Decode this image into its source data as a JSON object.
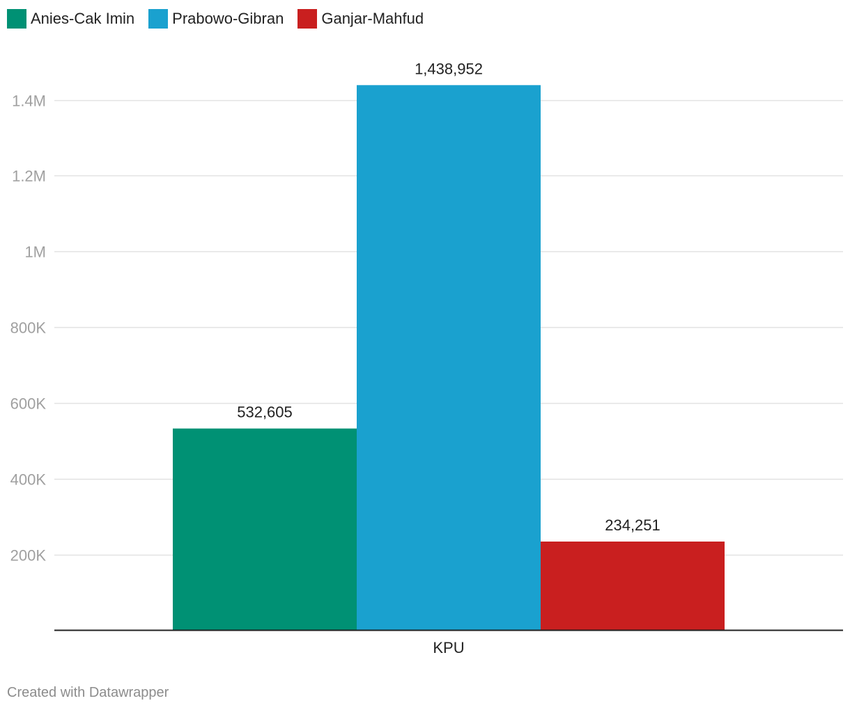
{
  "chart_data": {
    "type": "bar",
    "categories": [
      "KPU"
    ],
    "series": [
      {
        "name": "Anies-Cak Imin",
        "values": [
          532605
        ],
        "value_label": "532,605",
        "color": "#009174"
      },
      {
        "name": "Prabowo-Gibran",
        "values": [
          1438952
        ],
        "value_label": "1,438,952",
        "color": "#1aa1cf"
      },
      {
        "name": "Ganjar-Mahfud",
        "values": [
          234251
        ],
        "value_label": "234,251",
        "color": "#c91f1f"
      }
    ],
    "ylim": [
      0,
      1400000
    ],
    "yticks": [
      200000,
      400000,
      600000,
      800000,
      1000000,
      1200000,
      1400000
    ],
    "ytick_labels": [
      "200K",
      "400K",
      "600K",
      "800K",
      "1M",
      "1.2M",
      "1.4M"
    ],
    "grid": true,
    "legend_position": "top-left",
    "xlabel": "",
    "ylabel": ""
  },
  "credit": "Created with Datawrapper"
}
